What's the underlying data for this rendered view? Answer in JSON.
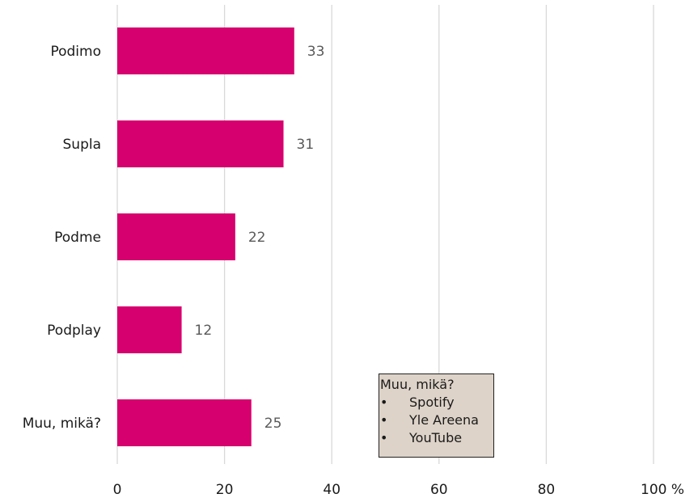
{
  "chart_data": {
    "type": "bar",
    "orientation": "horizontal",
    "categories": [
      "Podimo",
      "Supla",
      "Podme",
      "Podplay",
      "Muu, mikä?"
    ],
    "values": [
      33,
      31,
      22,
      12,
      25
    ],
    "xlim": [
      0,
      100
    ],
    "xticks": [
      "0",
      "20",
      "40",
      "60",
      "80",
      "100 %"
    ],
    "grid": true,
    "bar_color": "#d6006e",
    "annotation": {
      "title": "Muu, mikä?",
      "items": [
        "Spotify",
        "Yle Areena",
        "YouTube"
      ]
    }
  }
}
